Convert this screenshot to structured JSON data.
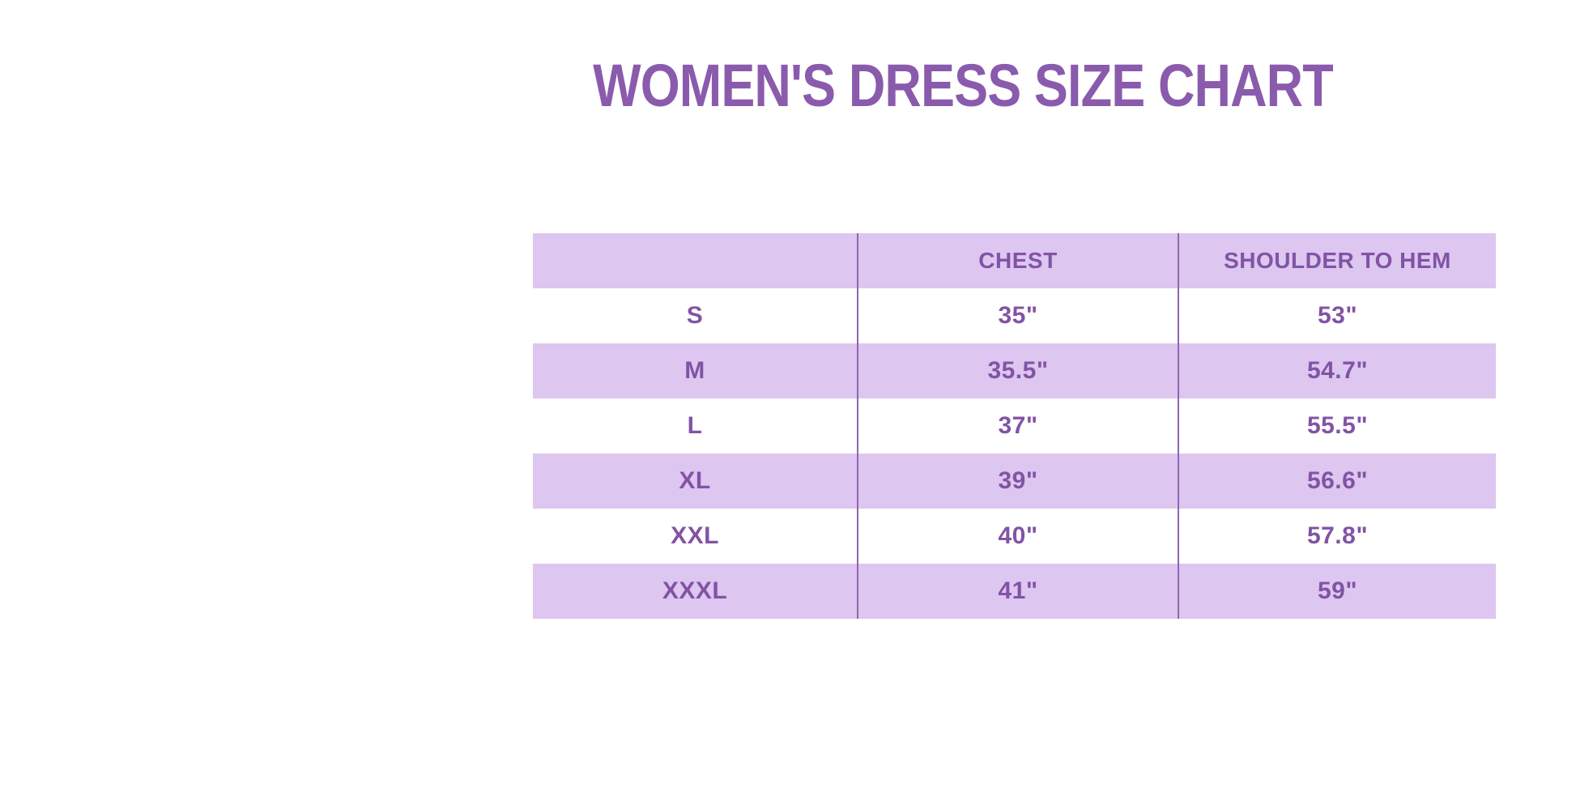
{
  "page": {
    "title": "WOMEN'S DRESS SIZE CHART",
    "background": "#ffffff"
  },
  "colors": {
    "title_text": "#8a5bad",
    "table_text": "#8153a5",
    "row_fill": "#ddc6ef",
    "row_fill_alt": "#ffffff",
    "divider": "#9165b0"
  },
  "chart_data": {
    "type": "table",
    "title": "WOMEN'S DRESS SIZE CHART",
    "columns": [
      "",
      "CHEST",
      "SHOULDER TO HEM"
    ],
    "rows": [
      [
        "S",
        "35\"",
        "53\""
      ],
      [
        "M",
        "35.5\"",
        "54.7\""
      ],
      [
        "L",
        "37\"",
        "55.5\""
      ],
      [
        "XL",
        "39\"",
        "56.6\""
      ],
      [
        "XXL",
        "40\"",
        "57.8\""
      ],
      [
        "XXXL",
        "41\"",
        "59\""
      ]
    ],
    "layout": {
      "header_fill": "#ddc6ef",
      "zebra_striping": true,
      "column_dividers": true,
      "grid": "vertical-dividers-only",
      "text_alignment": "center"
    }
  }
}
